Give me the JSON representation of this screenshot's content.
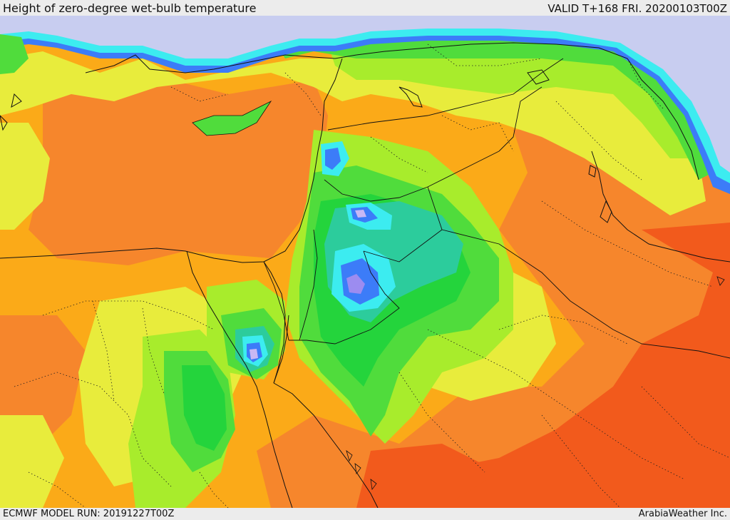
{
  "header": {
    "title": "Height of zero-degree wet-bulb temperature",
    "valid": "VALID T+168 FRI. 20200103T00Z"
  },
  "footer": {
    "model_run": "ECMWF MODEL RUN: 20191227T00Z",
    "credit": "ArabiaWeather Inc."
  },
  "colors": {
    "sea": "#c8cdf0",
    "red": "#f25a1c",
    "dark_orange": "#f6862c",
    "orange": "#fbaa18",
    "yellow": "#e8ec3c",
    "lime": "#a8ec2c",
    "green": "#50dc3c",
    "bright_green": "#24d43c",
    "teal": "#2ccc9c",
    "cyan": "#3cecf0",
    "blue": "#3c7cf8",
    "violet": "#9c8cf0",
    "lavender": "#c8b8f4"
  }
}
